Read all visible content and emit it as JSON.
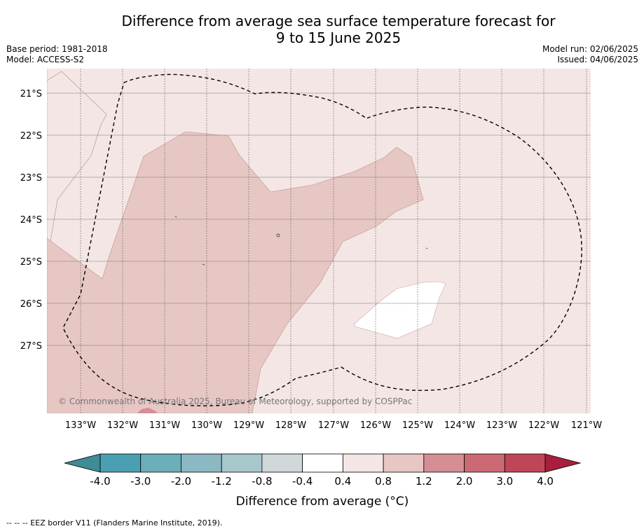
{
  "title_line1": "Difference from average sea surface temperature forecast for",
  "title_line2": "9 to 15 June 2025",
  "meta": {
    "base_period": "Base period: 1981-2018",
    "model": "Model: ACCESS-S2",
    "model_run": "Model run: 02/06/2025",
    "issued": "Issued: 04/06/2025"
  },
  "map": {
    "lat_labels": [
      "21°S",
      "22°S",
      "23°S",
      "24°S",
      "25°S",
      "26°S",
      "27°S"
    ],
    "lon_labels": [
      "133°W",
      "132°W",
      "131°W",
      "130°W",
      "129°W",
      "128°W",
      "127°W",
      "126°W",
      "125°W",
      "124°W",
      "123°W",
      "122°W",
      "121°W"
    ],
    "copyright": "© Commonwealth of Australia 2025, Bureau of Meteorology, supported by COSPPac",
    "background_class_color": "#f4e6e5"
  },
  "colorbar": {
    "tick_labels": [
      "-4.0",
      "-3.0",
      "-2.0",
      "-1.2",
      "-0.8",
      "-0.4",
      "0.4",
      "0.8",
      "1.2",
      "2.0",
      "3.0",
      "4.0"
    ],
    "colors": [
      "#3f8b96",
      "#4aa0b0",
      "#6caeba",
      "#8cb8c3",
      "#a7c7cc",
      "#d1d8da",
      "#ffffff",
      "#f4e6e5",
      "#e7c7c3",
      "#d68d93",
      "#cb6a73",
      "#bf4656",
      "#a91e3c"
    ],
    "label": "Difference from average (°C)"
  },
  "footnote": "-- -- -- EEZ border V11 (Flanders Marine Institute, 2019)."
}
